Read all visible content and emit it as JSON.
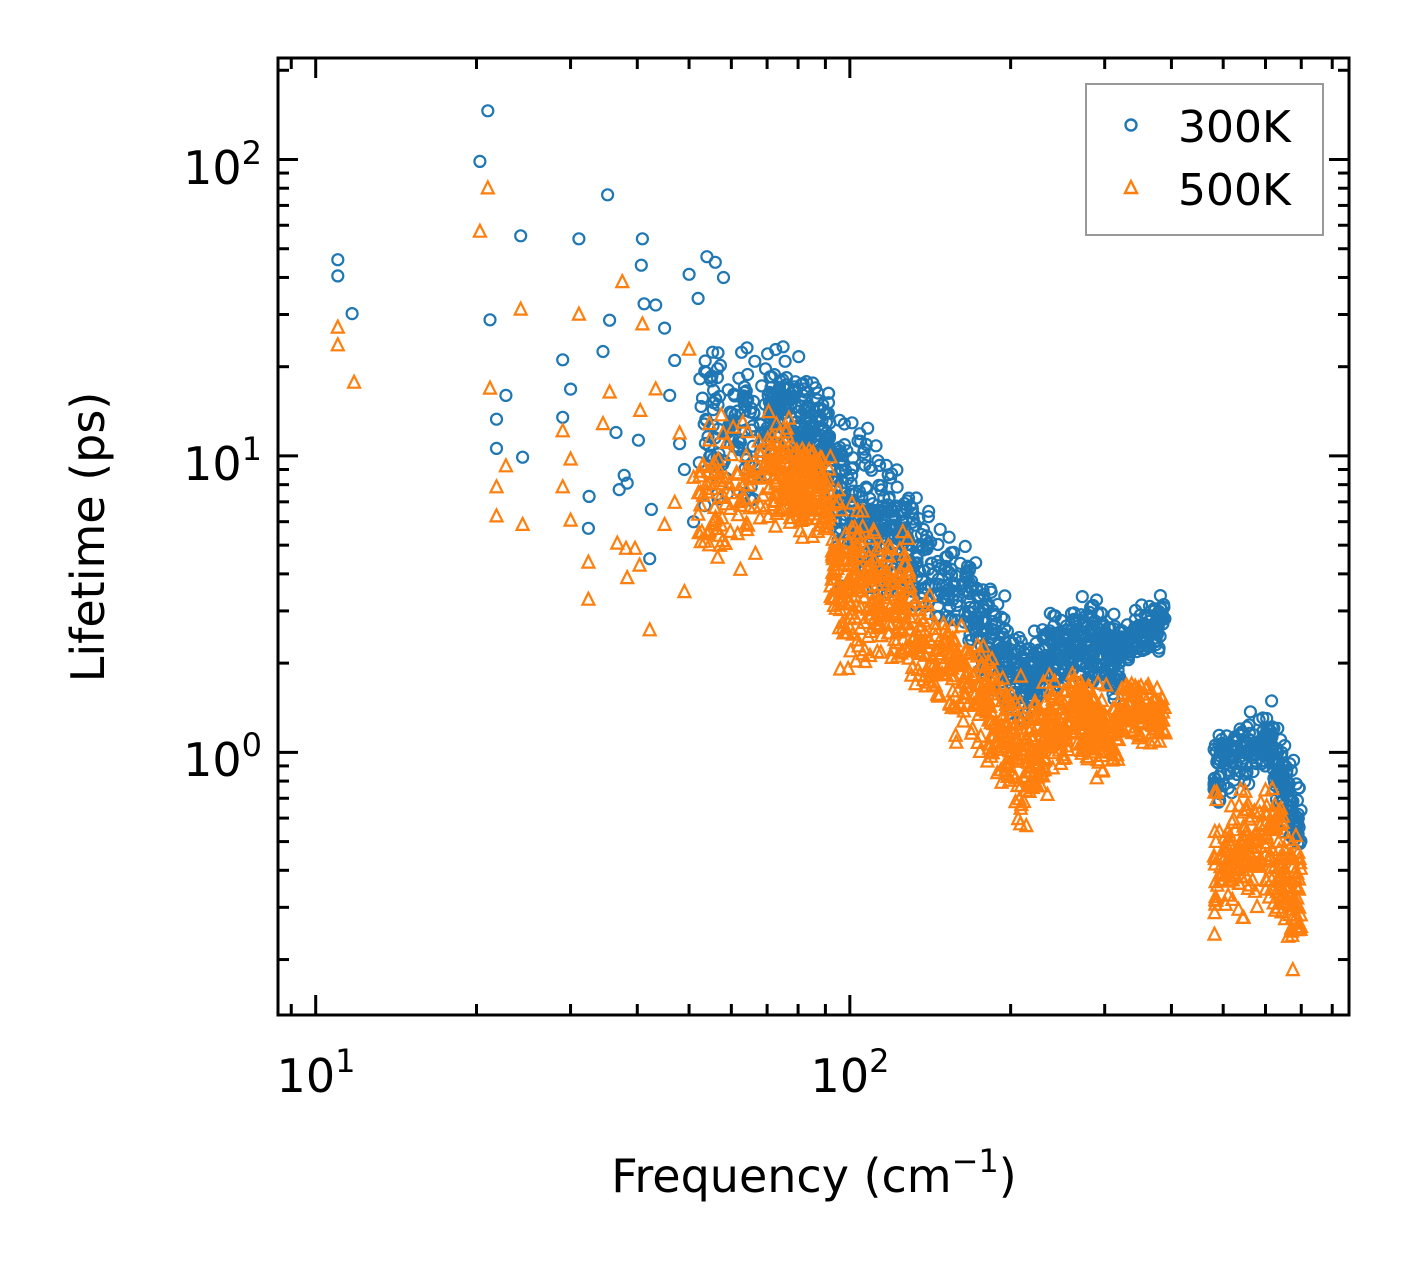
{
  "chart_data": {
    "type": "scatter",
    "xscale": "log",
    "yscale": "log",
    "xlabel": "Frequency (cm",
    "xlabel_sup": "−1",
    "xlabel_close": ")",
    "ylabel": "Lifetime (ps)",
    "xlim": [
      8.5,
      860
    ],
    "ylim": [
      0.13,
      220
    ],
    "grid": false,
    "legend_position": "top-right",
    "x_ticks": [
      {
        "value": 10,
        "base": "10",
        "exp": "1"
      },
      {
        "value": 100,
        "base": "10",
        "exp": "2"
      }
    ],
    "y_ticks": [
      {
        "value": 1,
        "base": "10",
        "exp": "0"
      },
      {
        "value": 10,
        "base": "10",
        "exp": "1"
      },
      {
        "value": 100,
        "base": "10",
        "exp": "2"
      }
    ],
    "series": [
      {
        "name": "300K",
        "color": "#1f77b4",
        "marker": "circle",
        "points": [
          [
            11.0,
            45.9
          ],
          [
            11.0,
            40.5
          ],
          [
            11.7,
            30.2
          ],
          [
            21.0,
            146
          ],
          [
            20.3,
            98.5
          ],
          [
            21.2,
            28.8
          ],
          [
            24.2,
            55.3
          ],
          [
            21.8,
            13.3
          ],
          [
            21.8,
            10.6
          ],
          [
            22.7,
            16
          ],
          [
            24.4,
            9.9
          ],
          [
            31.1,
            54
          ],
          [
            35.2,
            76
          ],
          [
            40.9,
            54
          ],
          [
            40.7,
            44
          ],
          [
            41.2,
            32.6
          ],
          [
            29.0,
            21.1
          ],
          [
            29.0,
            13.5
          ],
          [
            30.0,
            16.8
          ],
          [
            34.5,
            22.5
          ],
          [
            35.5,
            28.7
          ],
          [
            36.5,
            12
          ],
          [
            37.8,
            8.6
          ],
          [
            38.3,
            8.1
          ],
          [
            37.0,
            7.7
          ],
          [
            32.5,
            7.3
          ],
          [
            32.4,
            5.7
          ],
          [
            42.2,
            4.5
          ],
          [
            40.2,
            11.3
          ],
          [
            42.5,
            6.6
          ],
          [
            43.3,
            32.3
          ],
          [
            45,
            27
          ],
          [
            47,
            21
          ],
          [
            48,
            11
          ],
          [
            50,
            41
          ],
          [
            52,
            34
          ],
          [
            54,
            47
          ],
          [
            56,
            45
          ],
          [
            58,
            40
          ],
          [
            46,
            16
          ],
          [
            49,
            9
          ],
          [
            51,
            6
          ]
        ],
        "dense_bands": [
          {
            "f": [
              52,
              70
            ],
            "lo": [
              5.5,
              5.5
            ],
            "hi": [
              30,
              28
            ],
            "n": 120
          },
          {
            "f": [
              70,
              92
            ],
            "lo": [
              8,
              6
            ],
            "hi": [
              30,
              20
            ],
            "n": 220
          },
          {
            "f": [
              92,
              130
            ],
            "lo": [
              2.8,
              3
            ],
            "hi": [
              20,
              9
            ],
            "n": 250
          },
          {
            "f": [
              130,
              175
            ],
            "lo": [
              2.2,
              1.8
            ],
            "hi": [
              9,
              5
            ],
            "n": 150
          },
          {
            "f": [
              175,
              215
            ],
            "lo": [
              1.5,
              0.9
            ],
            "hi": [
              4.5,
              3
            ],
            "n": 150
          },
          {
            "f": [
              215,
              260
            ],
            "lo": [
              1.2,
              1.5
            ],
            "hi": [
              2.8,
              3.5
            ],
            "n": 150
          },
          {
            "f": [
              260,
              320
            ],
            "lo": [
              1.4,
              1.3
            ],
            "hi": [
              4,
              3.5
            ],
            "n": 180
          },
          {
            "f": [
              320,
              390
            ],
            "lo": [
              1.7,
              2.2
            ],
            "hi": [
              3,
              3.7
            ],
            "n": 120
          },
          {
            "f": [
              480,
              620
            ],
            "lo": [
              0.6,
              0.8
            ],
            "hi": [
              1.3,
              1.6
            ],
            "n": 160
          },
          {
            "f": [
              620,
              700
            ],
            "lo": [
              0.5,
              0.4
            ],
            "hi": [
              1.5,
              0.9
            ],
            "n": 100
          }
        ]
      },
      {
        "name": "500K",
        "color": "#ff7f0e",
        "marker": "triangle",
        "points": [
          [
            11.0,
            27.3
          ],
          [
            11.0,
            23.8
          ],
          [
            11.8,
            17.8
          ],
          [
            20.3,
            57.5
          ],
          [
            21.0,
            80.5
          ],
          [
            21.2,
            17
          ],
          [
            21.8,
            7.9
          ],
          [
            21.8,
            6.3
          ],
          [
            22.7,
            9.3
          ],
          [
            24.4,
            5.9
          ],
          [
            24.2,
            31.4
          ],
          [
            29,
            12.2
          ],
          [
            29,
            7.9
          ],
          [
            30,
            9.8
          ],
          [
            30,
            6.1
          ],
          [
            31.1,
            30.2
          ],
          [
            32.4,
            4.4
          ],
          [
            32.4,
            3.3
          ],
          [
            34.5,
            12.9
          ],
          [
            35.5,
            16.5
          ],
          [
            37.5,
            38.9
          ],
          [
            36.7,
            5.1
          ],
          [
            38.1,
            4.9
          ],
          [
            38.3,
            3.9
          ],
          [
            40.9,
            28
          ],
          [
            40.5,
            14.3
          ],
          [
            42.2,
            2.6
          ],
          [
            45,
            5.9
          ],
          [
            43.3,
            16.9
          ],
          [
            39.6,
            4.9
          ],
          [
            40.4,
            4.3
          ],
          [
            47,
            7
          ],
          [
            49,
            3.5
          ],
          [
            50,
            23
          ],
          [
            51,
            8.5
          ],
          [
            48,
            12
          ]
        ],
        "dense_bands": [
          {
            "f": [
              52,
              70
            ],
            "lo": [
              3.5,
              4
            ],
            "hi": [
              18,
              15
            ],
            "n": 100
          },
          {
            "f": [
              70,
              92
            ],
            "lo": [
              5,
              4.5
            ],
            "hi": [
              16,
              12
            ],
            "n": 220
          },
          {
            "f": [
              92,
              130
            ],
            "lo": [
              1.6,
              1.6
            ],
            "hi": [
              10,
              6
            ],
            "n": 250
          },
          {
            "f": [
              130,
              175
            ],
            "lo": [
              1.2,
              0.9
            ],
            "hi": [
              5,
              3
            ],
            "n": 150
          },
          {
            "f": [
              175,
              215
            ],
            "lo": [
              0.8,
              0.38
            ],
            "hi": [
              3,
              2
            ],
            "n": 150
          },
          {
            "f": [
              215,
              260
            ],
            "lo": [
              0.5,
              0.9
            ],
            "hi": [
              1.8,
              2.2
            ],
            "n": 150
          },
          {
            "f": [
              260,
              320
            ],
            "lo": [
              0.8,
              0.75
            ],
            "hi": [
              2.4,
              1.6
            ],
            "n": 180
          },
          {
            "f": [
              320,
              390
            ],
            "lo": [
              1.0,
              1.0
            ],
            "hi": [
              2,
              1.8
            ],
            "n": 120
          },
          {
            "f": [
              480,
              620
            ],
            "lo": [
              0.22,
              0.28
            ],
            "hi": [
              0.8,
              0.95
            ],
            "n": 160
          },
          {
            "f": [
              620,
              700
            ],
            "lo": [
              0.2,
              0.17
            ],
            "hi": [
              1.0,
              0.55
            ],
            "n": 100
          }
        ]
      }
    ]
  }
}
